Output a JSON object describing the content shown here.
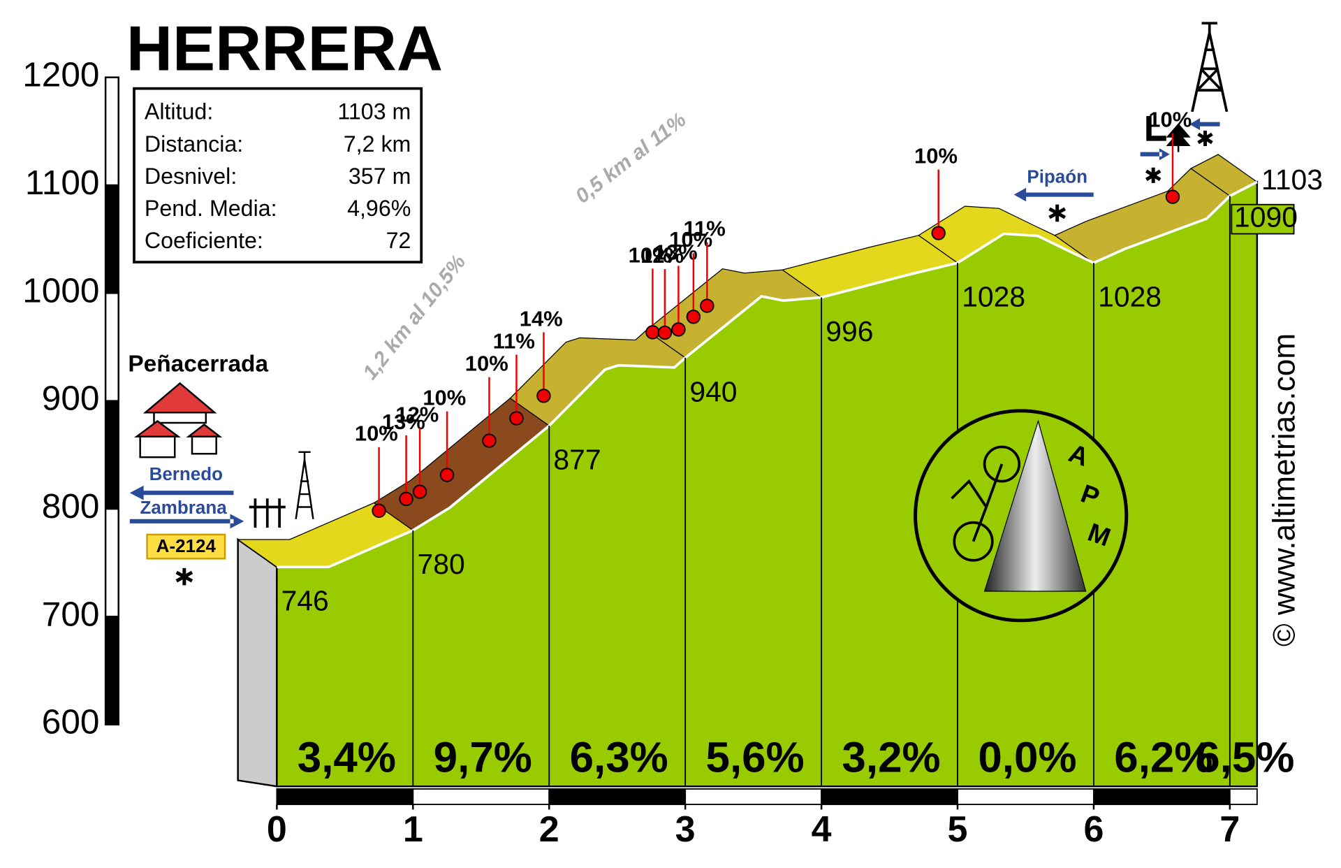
{
  "chart_data": {
    "type": "line",
    "title": "HERRERA",
    "stats": [
      {
        "label": "Altitud:",
        "value": "1103 m"
      },
      {
        "label": "Distancia:",
        "value": "7,2 km"
      },
      {
        "label": "Desnivel:",
        "value": "357 m"
      },
      {
        "label": "Pend. Media:",
        "value": "4,96%"
      },
      {
        "label": "Coeficiente:",
        "value": "72"
      }
    ],
    "xlim": [
      0,
      7.2
    ],
    "xticks": [
      0,
      1,
      2,
      3,
      4,
      5,
      6,
      7
    ],
    "ylim": [
      600,
      1200
    ],
    "yticks": [
      600,
      700,
      800,
      900,
      1000,
      1100,
      1200
    ],
    "profile": {
      "x": [
        0,
        0.38,
        1,
        1.27,
        2,
        2.41,
        2.51,
        2.92,
        3,
        3.56,
        3.72,
        4,
        4.64,
        5,
        5.34,
        5.59,
        5.85,
        6,
        6.23,
        6.83,
        7,
        7.2
      ],
      "values": [
        746,
        746,
        780,
        801,
        877,
        929,
        933,
        931,
        940,
        997,
        993,
        996,
        1017,
        1028,
        1055,
        1053,
        1037,
        1028,
        1041,
        1069,
        1090,
        1103
      ],
      "color": "#99cc00"
    },
    "km_points": {
      "x": [
        0,
        1,
        2,
        3,
        4,
        5,
        6,
        7,
        7.2
      ],
      "values": [
        746,
        780,
        877,
        940,
        996,
        1028,
        1028,
        1090,
        1103
      ]
    },
    "segments": {
      "values": [
        3.4,
        9.7,
        6.3,
        5.6,
        3.2,
        0.0,
        6.2,
        6.5
      ],
      "value_labels": [
        "3,4%",
        "9,7%",
        "6,3%",
        "5,6%",
        "3,2%",
        "0,0%",
        "6,2%",
        "6,5%"
      ]
    },
    "gradient_marks": [
      {
        "x": 0.75,
        "label": "10%"
      },
      {
        "x": 0.95,
        "label": "13%"
      },
      {
        "x": 1.05,
        "label": "12%"
      },
      {
        "x": 1.25,
        "label": "10%"
      },
      {
        "x": 1.56,
        "label": "10%"
      },
      {
        "x": 1.76,
        "label": "11%"
      },
      {
        "x": 1.96,
        "label": "14%"
      },
      {
        "x": 2.76,
        "label": "10%"
      },
      {
        "x": 2.85,
        "label": "12%"
      },
      {
        "x": 2.95,
        "label": "13%"
      },
      {
        "x": 3.06,
        "label": "10%"
      },
      {
        "x": 3.16,
        "label": "11%"
      },
      {
        "x": 4.86,
        "label": "10%"
      },
      {
        "x": 6.58,
        "label": "10%"
      }
    ],
    "annotations": [
      "1,2 km al 10,5%",
      "0,5 km al 11%"
    ],
    "places": {
      "start": "Peñacerrada",
      "left_arrow": "Bernedo",
      "right_arrow": "Zambrana",
      "road": "A-2124",
      "pass_arrow": "Pipaón"
    },
    "logo": [
      "A",
      "P",
      "M"
    ],
    "credit": "© www.altimetrias.com"
  }
}
